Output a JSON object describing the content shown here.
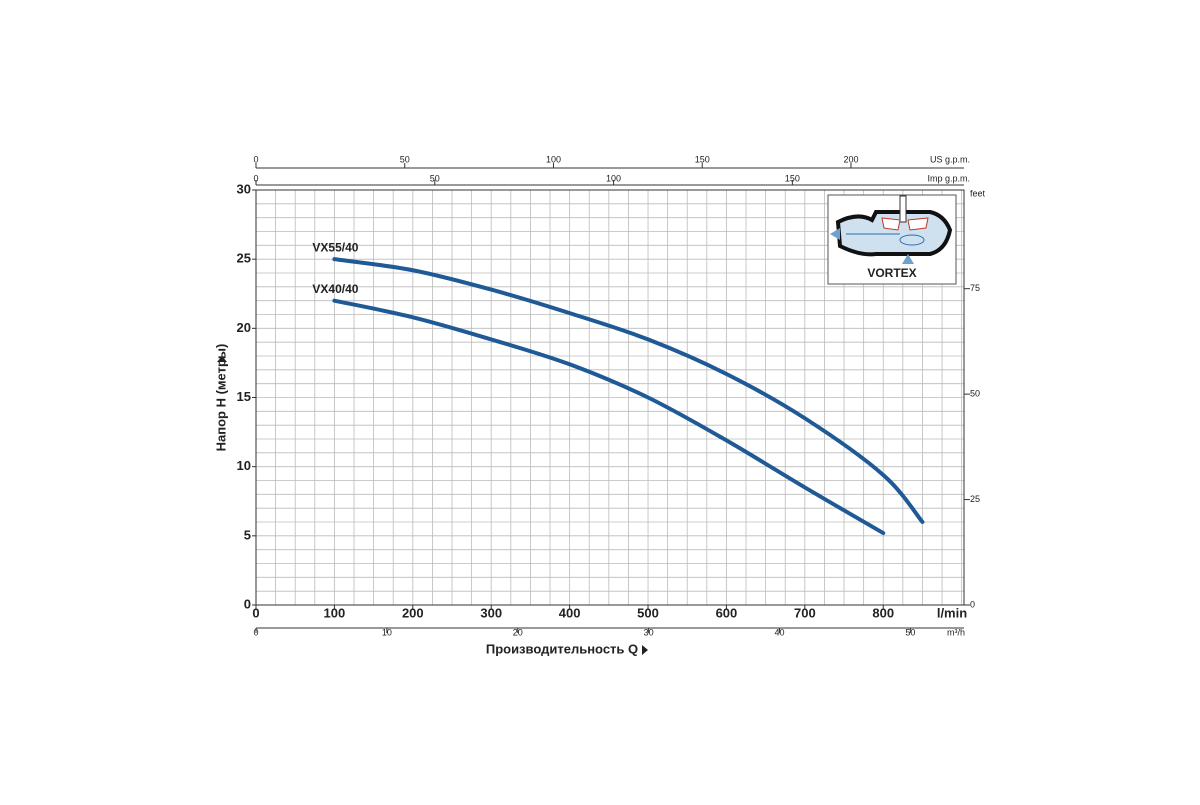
{
  "chart_data": {
    "type": "line",
    "xlabel": "Производительность Q",
    "xunit": "l/min",
    "ylabel": "Напор H (метры)",
    "xlim": [
      0,
      903
    ],
    "xticks": [
      0,
      100,
      200,
      300,
      400,
      500,
      600,
      700,
      800
    ],
    "ylim": [
      0,
      30
    ],
    "yticks": [
      0,
      5,
      10,
      15,
      20,
      25,
      30
    ],
    "grid": true,
    "grid_spacing": {
      "x": 25,
      "y": 1
    },
    "series": [
      {
        "name": "VX55/40",
        "color": "#1f5a96",
        "x": [
          100,
          200,
          300,
          400,
          500,
          600,
          700,
          800,
          850
        ],
        "values": [
          25,
          24.2,
          22.8,
          21.1,
          19.2,
          16.7,
          13.5,
          9.4,
          6
        ]
      },
      {
        "name": "VX40/40",
        "color": "#1f5a96",
        "x": [
          100,
          200,
          300,
          400,
          500,
          600,
          700,
          800
        ],
        "values": [
          22,
          20.8,
          19.2,
          17.4,
          15,
          11.9,
          8.5,
          5.2
        ]
      }
    ],
    "secondary_axes": [
      {
        "position": "top",
        "label": "US g.p.m.",
        "lim": [
          0,
          238
        ],
        "ticks": [
          0,
          50,
          100,
          150,
          200
        ]
      },
      {
        "position": "top2",
        "label": "Imp g.p.m.",
        "lim": [
          0,
          198
        ],
        "ticks": [
          0,
          50,
          100,
          150
        ]
      },
      {
        "position": "bottom2",
        "label": "m³/h",
        "lim": [
          0,
          54.1
        ],
        "ticks": [
          0,
          10,
          20,
          30,
          40,
          50
        ]
      },
      {
        "position": "right",
        "label": "feet",
        "lim": [
          0,
          98.4
        ],
        "ticks": [
          0,
          25,
          50,
          75
        ]
      }
    ]
  },
  "inset": {
    "label": "VORTEX"
  }
}
